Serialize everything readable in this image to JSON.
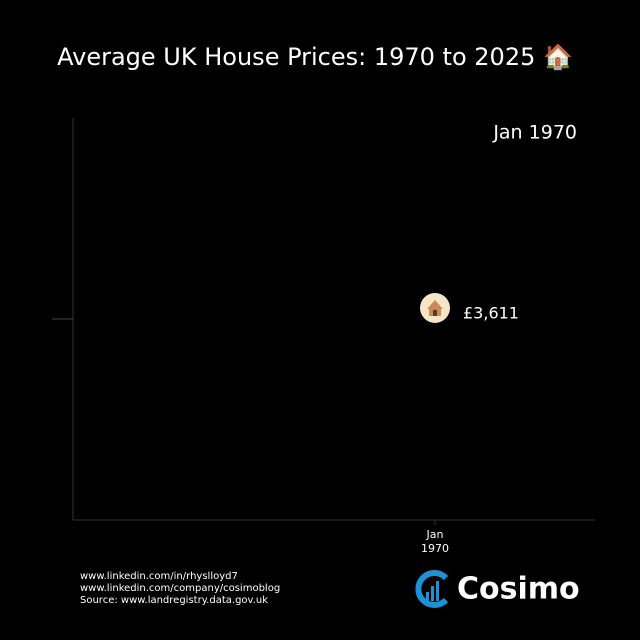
{
  "chart_data": {
    "type": "line",
    "title": "Average UK House Prices: 1970 to 2025 🏠",
    "annotation": "Jan 1970",
    "categories": [
      "Jan 1970"
    ],
    "xtick_labels": [
      "Jan",
      "1970"
    ],
    "values": [
      3611
    ],
    "value_labels": [
      "£3,611"
    ],
    "color": "#f5e6c8",
    "ylim": [
      3400,
      3800
    ],
    "yticks": [
      3600
    ]
  },
  "footer": {
    "links": [
      "www.linkedin.com/in/rhyslloyd7",
      "www.linkedin.com/company/cosimoblog"
    ],
    "source": "Source: www.landregistry.data.gov.uk"
  },
  "brand": "Cosimo"
}
